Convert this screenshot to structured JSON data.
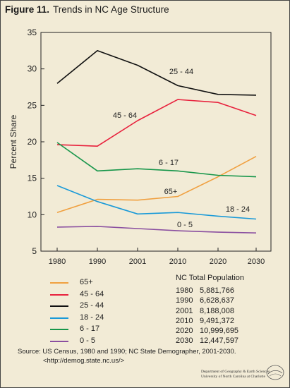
{
  "figure": {
    "number": "Figure 11.",
    "title": "Trends in NC Age Structure"
  },
  "chart_data": {
    "type": "line",
    "title": "Trends in NC Age Structure",
    "xlabel": "",
    "ylabel": "Percent Share",
    "categories": [
      "1980",
      "1990",
      "2001",
      "2010",
      "2020",
      "2030"
    ],
    "ylim": [
      5,
      35
    ],
    "yticks": [
      5,
      10,
      15,
      20,
      25,
      30,
      35
    ],
    "grid": false,
    "series": [
      {
        "name": "65+",
        "color": "#f0a040",
        "values": [
          10.3,
          12.1,
          12.0,
          12.5,
          15.2,
          18.0
        ],
        "label": "65+"
      },
      {
        "name": "45 - 64",
        "color": "#e8203c",
        "values": [
          19.6,
          19.4,
          22.9,
          25.8,
          25.4,
          23.6
        ],
        "label": "45 - 64"
      },
      {
        "name": "25 - 44",
        "color": "#111111",
        "values": [
          28.0,
          32.5,
          30.5,
          27.7,
          26.5,
          26.4
        ],
        "label": "25 - 44"
      },
      {
        "name": "18 - 24",
        "color": "#1a9ad8",
        "values": [
          14.0,
          11.8,
          10.1,
          10.3,
          9.8,
          9.4
        ],
        "label": "18 - 24"
      },
      {
        "name": "6 - 17",
        "color": "#17964a",
        "values": [
          19.9,
          16.0,
          16.3,
          16.0,
          15.4,
          15.2
        ],
        "label": "6 - 17"
      },
      {
        "name": "0 - 5",
        "color": "#8a4fa0",
        "values": [
          8.3,
          8.4,
          8.1,
          7.8,
          7.6,
          7.5
        ],
        "label": "0 - 5"
      }
    ]
  },
  "legend": {
    "items": [
      {
        "label": "65+",
        "color": "#f0a040"
      },
      {
        "label": "45 - 64",
        "color": "#e8203c"
      },
      {
        "label": "25 - 44",
        "color": "#111111"
      },
      {
        "label": "18 - 24",
        "color": "#1a9ad8"
      },
      {
        "label": "6 - 17",
        "color": "#17964a"
      },
      {
        "label": "0 - 5",
        "color": "#8a4fa0"
      }
    ]
  },
  "population_table": {
    "title": "NC Total Population",
    "rows": [
      {
        "year": "1980",
        "value": "5,881,766"
      },
      {
        "year": "1990",
        "value": "6,628,637"
      },
      {
        "year": "2001",
        "value": "8,188,008"
      },
      {
        "year": "2010",
        "value": "9,491,372"
      },
      {
        "year": "2020",
        "value": "10,999,695"
      },
      {
        "year": "2030",
        "value": "12,447,597"
      }
    ]
  },
  "source": {
    "line1": "Source:  US Census, 1980 and 1990; NC State Demographer, 2001-2030.",
    "line2": "<http://demog.state.nc.us/>"
  },
  "logo": {
    "line1": "Department of Geography & Earth Sciences",
    "line2": "University of North Carolina at Charlotte"
  }
}
